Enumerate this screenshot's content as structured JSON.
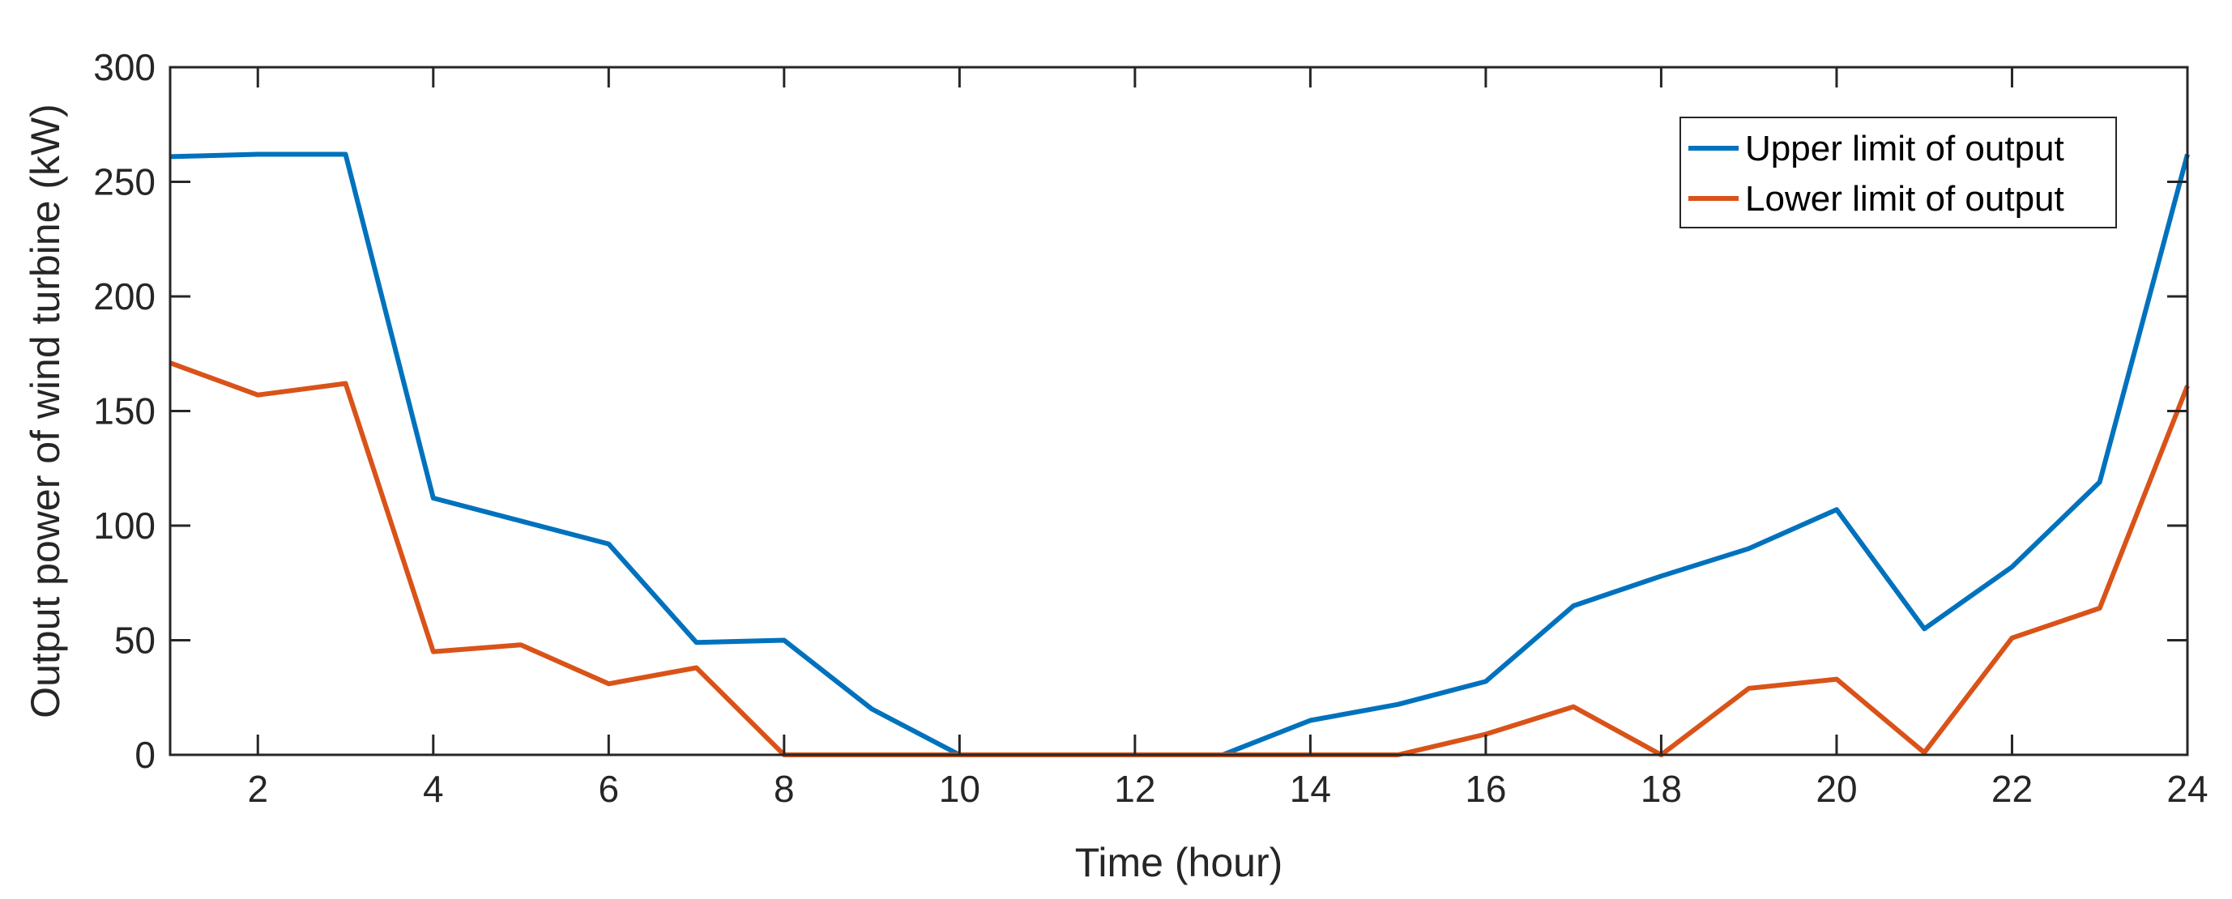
{
  "chart_data": {
    "type": "line",
    "title": "",
    "xlabel": "Time (hour)",
    "ylabel": "Output power of wind turbine (kW)",
    "xlim": [
      1,
      24
    ],
    "ylim": [
      0,
      300
    ],
    "xticks": [
      2,
      4,
      6,
      8,
      10,
      12,
      14,
      16,
      18,
      20,
      22,
      24
    ],
    "yticks": [
      0,
      50,
      100,
      150,
      200,
      250,
      300
    ],
    "grid": false,
    "legend_position": "top-right",
    "x": [
      1,
      2,
      3,
      4,
      5,
      6,
      7,
      8,
      9,
      10,
      11,
      12,
      13,
      14,
      15,
      16,
      17,
      18,
      19,
      20,
      21,
      22,
      23,
      24
    ],
    "series": [
      {
        "name": "Upper limit of output",
        "color": "#0072BD",
        "values": [
          261,
          262,
          262,
          112,
          102,
          92,
          49,
          50,
          20,
          0,
          0,
          0,
          0,
          15,
          22,
          32,
          65,
          78,
          90,
          107,
          55,
          82,
          119,
          262
        ]
      },
      {
        "name": "Lower limit of output",
        "color": "#D95319",
        "values": [
          171,
          157,
          162,
          45,
          48,
          31,
          38,
          0,
          0,
          0,
          0,
          0,
          0,
          0,
          0,
          9,
          21,
          0,
          29,
          33,
          1,
          51,
          64,
          161
        ]
      }
    ]
  }
}
